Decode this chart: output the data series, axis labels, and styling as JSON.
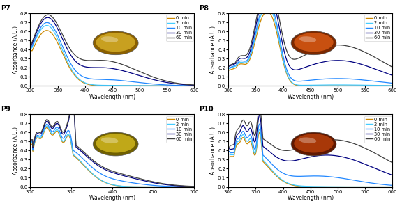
{
  "panels": [
    "P7",
    "P8",
    "P9",
    "P10"
  ],
  "colors": {
    "0 min": "#CC8800",
    "2 min": "#44CCFF",
    "10 min": "#2288FF",
    "30 min": "#000080",
    "60 min": "#404040"
  },
  "legend_labels": [
    "0 min",
    "2 min",
    "10 min",
    "30 min",
    "60 min"
  ],
  "P7": {
    "xlim": [
      300,
      600
    ],
    "ylim": [
      0,
      0.8
    ],
    "yticks": [
      0,
      0.1,
      0.2,
      0.3,
      0.4,
      0.5,
      0.6,
      0.7,
      0.8
    ],
    "xticks": [
      300,
      350,
      400,
      450,
      500,
      550,
      600
    ],
    "img_color": "#C8A020",
    "img_rim": "#8B6000"
  },
  "P8": {
    "xlim": [
      300,
      600
    ],
    "ylim": [
      0,
      0.8
    ],
    "yticks": [
      0,
      0.1,
      0.2,
      0.3,
      0.4,
      0.5,
      0.6,
      0.7,
      0.8
    ],
    "xticks": [
      300,
      350,
      400,
      450,
      500,
      550,
      600
    ],
    "img_color": "#C85010",
    "img_rim": "#7B2800"
  },
  "P9": {
    "xlim": [
      300,
      500
    ],
    "ylim": [
      0,
      0.8
    ],
    "yticks": [
      0,
      0.1,
      0.2,
      0.3,
      0.4,
      0.5,
      0.6,
      0.7,
      0.8
    ],
    "xticks": [
      300,
      350,
      400,
      450,
      500
    ],
    "img_color": "#C0A818",
    "img_rim": "#706000"
  },
  "P10": {
    "xlim": [
      300,
      600
    ],
    "ylim": [
      0,
      0.8
    ],
    "yticks": [
      0,
      0.1,
      0.2,
      0.3,
      0.4,
      0.5,
      0.6,
      0.7,
      0.8
    ],
    "xticks": [
      300,
      350,
      400,
      450,
      500,
      550,
      600
    ],
    "img_color": "#A83808",
    "img_rim": "#601800"
  }
}
